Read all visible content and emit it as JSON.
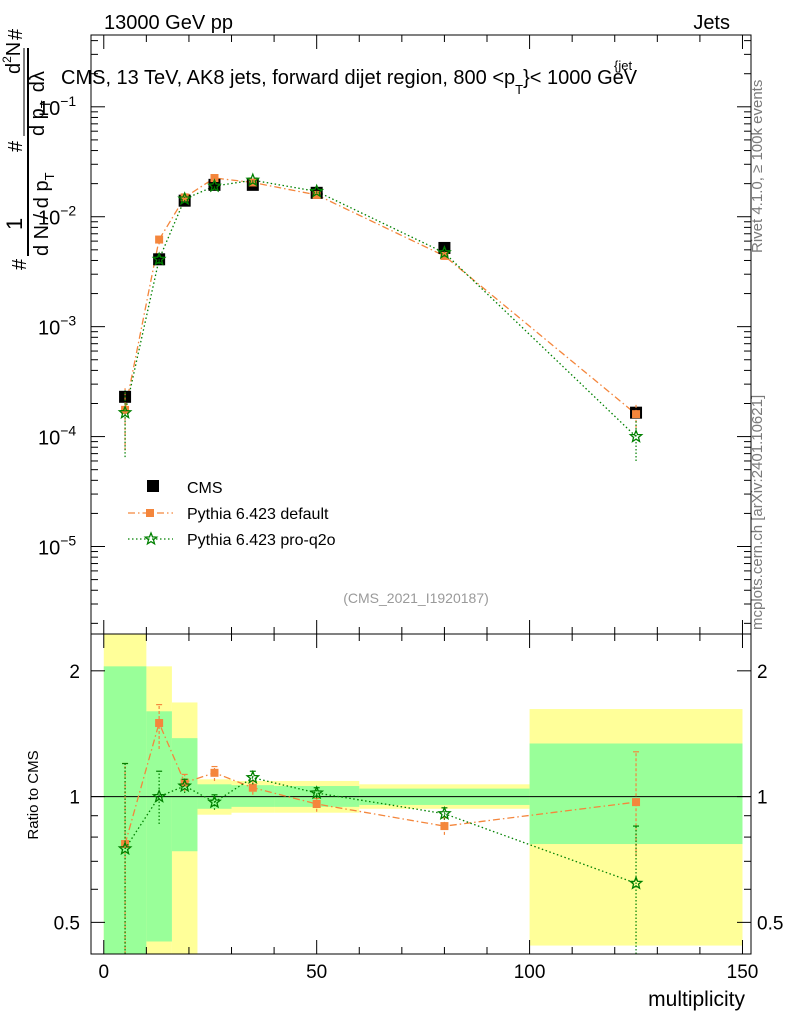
{
  "header": {
    "left_label": "13000 GeV pp",
    "right_label": "Jets"
  },
  "side_labels": {
    "rivet": "Rivet 4.1.0, ≥ 100k events",
    "mcplots": "mcplots.cern.ch [arXiv:2401.10621]"
  },
  "chart_data": {
    "type": "scatter",
    "title": "CMS, 13 TeV, AK8 jets, forward dijet region, 800 < p_T^{jet} < 1000 GeV",
    "title_parts": {
      "prefix": "CMS, 13 TeV, AK8 jets, forward dijet region, 800 <p",
      "sub": "T",
      "sup": "{jet",
      "suffix": "}< 1000 GeV"
    },
    "watermark": "(CMS_2021_I1920187)",
    "xlabel": "multiplicity",
    "ylabel_main": "1/(dN/dp_T) · d²N/(dp_T dλ)",
    "ylabel_main_parts": [
      "#",
      "1",
      "d N / d p",
      "T",
      "#",
      "d p",
      "T",
      "d",
      "2",
      "N",
      "#",
      "d",
      "λ"
    ],
    "ylabel_ratio": "Ratio to CMS",
    "xlim": [
      -3,
      152
    ],
    "xticks": [
      0,
      50,
      100,
      150
    ],
    "xtick_labels": [
      "0",
      "50",
      "100",
      "150"
    ],
    "main_panel": {
      "yscale": "log",
      "ylim": [
        1.6e-06,
        0.45
      ],
      "ytick_labels": [
        {
          "value": 0.1,
          "mant": "10",
          "exp": "−1"
        },
        {
          "value": 0.01,
          "mant": "10",
          "exp": "−2"
        },
        {
          "value": 0.001,
          "mant": "10",
          "exp": "−3"
        },
        {
          "value": 0.0001,
          "mant": "10",
          "exp": "−4"
        },
        {
          "value": 1e-05,
          "mant": "10",
          "exp": "−5"
        }
      ]
    },
    "ratio_panel": {
      "yscale": "log",
      "ylim": [
        0.42,
        2.45
      ],
      "yticks": [
        0.5,
        1,
        2
      ],
      "ytick_labels": [
        "0.5",
        "1",
        "2"
      ],
      "reference_line": 1.0
    },
    "bins": [
      {
        "lo": 0,
        "hi": 10,
        "green": [
          0.4,
          2.05
        ],
        "yellow": [
          0.4,
          2.5
        ]
      },
      {
        "lo": 10,
        "hi": 16,
        "green": [
          0.45,
          1.6
        ],
        "yellow": [
          0.4,
          2.05
        ]
      },
      {
        "lo": 16,
        "hi": 22,
        "green": [
          0.74,
          1.38
        ],
        "yellow": [
          0.4,
          1.68
        ]
      },
      {
        "lo": 22,
        "hi": 30,
        "green": [
          0.935,
          1.07
        ],
        "yellow": [
          0.905,
          1.1
        ]
      },
      {
        "lo": 30,
        "hi": 40,
        "green": [
          0.945,
          1.065
        ],
        "yellow": [
          0.915,
          1.09
        ]
      },
      {
        "lo": 40,
        "hi": 60,
        "green": [
          0.945,
          1.06
        ],
        "yellow": [
          0.915,
          1.09
        ]
      },
      {
        "lo": 60,
        "hi": 100,
        "green": [
          0.955,
          1.045
        ],
        "yellow": [
          0.935,
          1.07
        ]
      },
      {
        "lo": 100,
        "hi": 150,
        "green": [
          0.77,
          1.34
        ],
        "yellow": [
          0.44,
          1.62
        ]
      }
    ],
    "series": [
      {
        "name": "CMS",
        "marker": "square",
        "color": "#000000",
        "x": [
          5,
          13,
          19,
          26,
          35,
          50,
          80,
          125
        ],
        "y": [
          0.00023,
          0.0041,
          0.014,
          0.0195,
          0.0195,
          0.0165,
          0.0052,
          0.000165
        ]
      },
      {
        "name": "Pythia 6.423 default",
        "marker": "square",
        "color": "#f4863c",
        "line": "dashdot",
        "x": [
          5,
          13,
          19,
          26,
          35,
          50,
          80,
          125
        ],
        "y": [
          0.000175,
          0.0062,
          0.015,
          0.0225,
          0.0205,
          0.0158,
          0.0044,
          0.00016
        ],
        "y_err": [
          0.0001,
          0.0006,
          0.0008,
          0.0008,
          0.0007,
          0.0005,
          0.0003,
          4e-05
        ],
        "ratio": [
          0.77,
          1.5,
          1.08,
          1.14,
          1.05,
          0.96,
          0.85,
          0.97
        ],
        "ratio_err": [
          [
            0.3,
            1.2
          ],
          [
            1.3,
            1.66
          ],
          [
            1.03,
            1.13
          ],
          [
            1.09,
            1.18
          ],
          [
            1.01,
            1.09
          ],
          [
            0.92,
            0.99
          ],
          [
            0.81,
            0.89
          ],
          [
            0.72,
            1.28
          ]
        ]
      },
      {
        "name": "Pythia 6.423 pro-q2o",
        "marker": "star",
        "color": "#008000",
        "line": "dotted",
        "x": [
          5,
          13,
          19,
          26,
          35,
          50,
          80,
          125
        ],
        "y": [
          0.000165,
          0.0041,
          0.0145,
          0.019,
          0.0215,
          0.017,
          0.0047,
          0.0001
        ],
        "y_err": [
          0.0001,
          0.0004,
          0.0007,
          0.0007,
          0.0007,
          0.0005,
          0.0003,
          4e-05
        ],
        "ratio": [
          0.75,
          1.0,
          1.06,
          0.97,
          1.11,
          1.02,
          0.91,
          0.62
        ],
        "ratio_err": [
          [
            0.3,
            1.2
          ],
          [
            0.86,
            1.15
          ],
          [
            1.02,
            1.1
          ],
          [
            0.93,
            1.01
          ],
          [
            1.07,
            1.15
          ],
          [
            0.99,
            1.05
          ],
          [
            0.88,
            0.94
          ],
          [
            0.38,
            0.85
          ]
        ]
      }
    ],
    "legend": {
      "position": "center-left",
      "entries": [
        "CMS",
        "Pythia 6.423 default",
        "Pythia 6.423 pro-q2o"
      ]
    }
  }
}
